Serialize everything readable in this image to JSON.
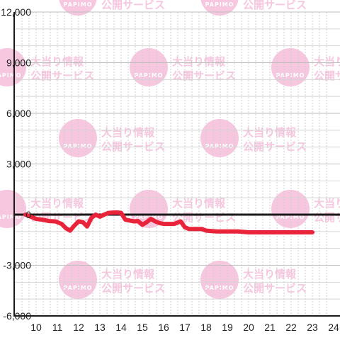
{
  "watermark": {
    "line1": "大当り情報",
    "line2": "公開サービス",
    "logo_text": "PAPIMO",
    "color": "#f7c6df"
  },
  "chart_data": {
    "type": "line",
    "x_ticks": [
      "10",
      "11",
      "12",
      "13",
      "14",
      "15",
      "16",
      "17",
      "18",
      "19",
      "20",
      "21",
      "22",
      "23",
      "24"
    ],
    "y_ticks": [
      "12,000",
      "9,000",
      "6,000",
      "3,000",
      "0",
      "-3,000",
      "-6,000"
    ],
    "ylim": [
      -6000,
      12000
    ],
    "xlim": [
      9.5,
      24.3
    ],
    "grid": true,
    "series_color": "#e8233a",
    "series": [
      {
        "x": [
          9.5,
          9.8,
          10.0,
          10.3,
          10.6,
          10.9,
          11.2,
          11.4,
          11.6,
          11.8,
          12.0,
          12.2,
          12.4,
          12.6,
          12.8,
          13.0,
          13.2,
          13.4,
          13.6,
          13.8,
          14.0,
          14.2,
          14.4,
          14.6,
          14.8,
          15.0,
          15.2,
          15.4,
          15.6,
          15.8,
          16.0,
          16.2,
          16.5,
          16.8,
          17.0,
          17.2,
          17.5,
          17.8,
          18.0,
          18.5,
          19.0,
          19.5,
          20.0,
          20.5,
          21.0,
          21.5,
          22.0,
          22.5,
          23.0
        ],
        "y": [
          0,
          -150,
          -250,
          -300,
          -380,
          -400,
          -550,
          -800,
          -950,
          -650,
          -400,
          -450,
          -700,
          -200,
          0,
          -120,
          0,
          100,
          120,
          130,
          100,
          -300,
          -350,
          -400,
          -380,
          -600,
          -450,
          -250,
          -400,
          -500,
          -550,
          -550,
          -550,
          -400,
          -750,
          -850,
          -850,
          -850,
          -950,
          -1000,
          -1000,
          -1000,
          -1050,
          -1050,
          -1050,
          -1050,
          -1050,
          -1050,
          -1050
        ]
      }
    ]
  }
}
